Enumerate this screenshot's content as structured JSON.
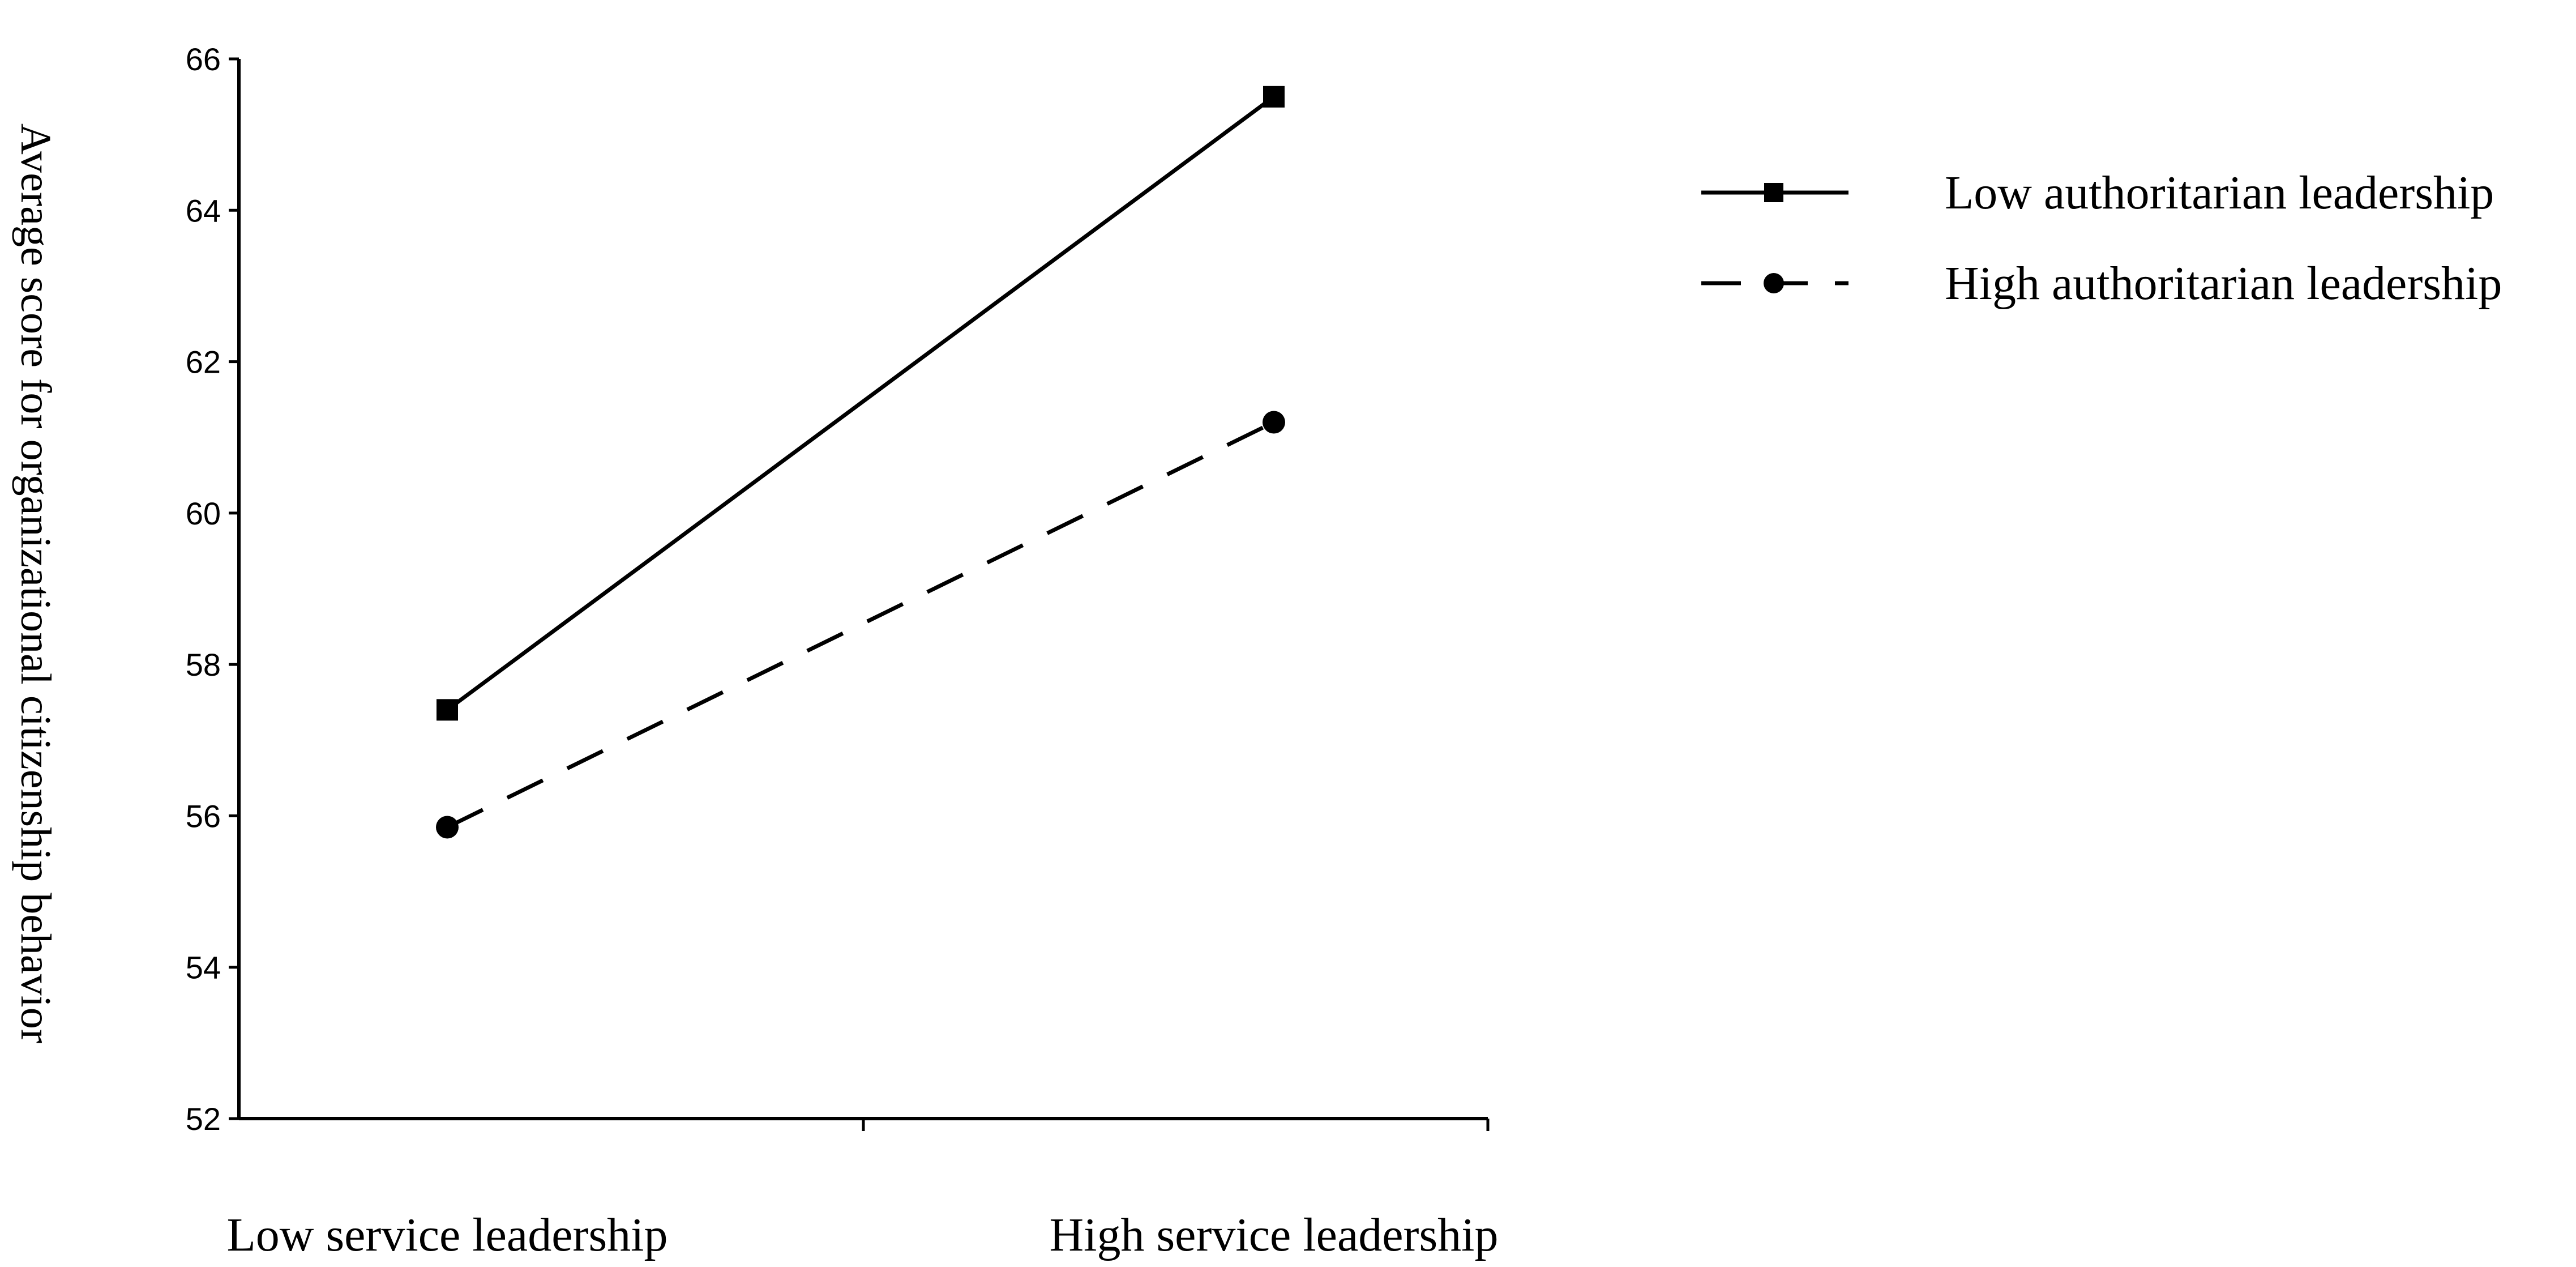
{
  "chart_data": {
    "type": "line",
    "ylabel": "Average score for organizational citizenship behavior",
    "xlabel": "",
    "categories": [
      "Low service leadership",
      "High service leadership"
    ],
    "ylim": [
      52,
      66
    ],
    "yticks": [
      52,
      54,
      56,
      58,
      60,
      62,
      64,
      66
    ],
    "series": [
      {
        "name": "Low authoritarian leadership",
        "values": [
          57.4,
          65.5
        ],
        "line_style": "solid",
        "marker": "square",
        "color": "#000000"
      },
      {
        "name": "High authoritarian leadership",
        "values": [
          55.85,
          61.2
        ],
        "line_style": "dashed",
        "marker": "circle",
        "color": "#000000"
      }
    ],
    "grid": false,
    "legend_position": "top-right"
  }
}
